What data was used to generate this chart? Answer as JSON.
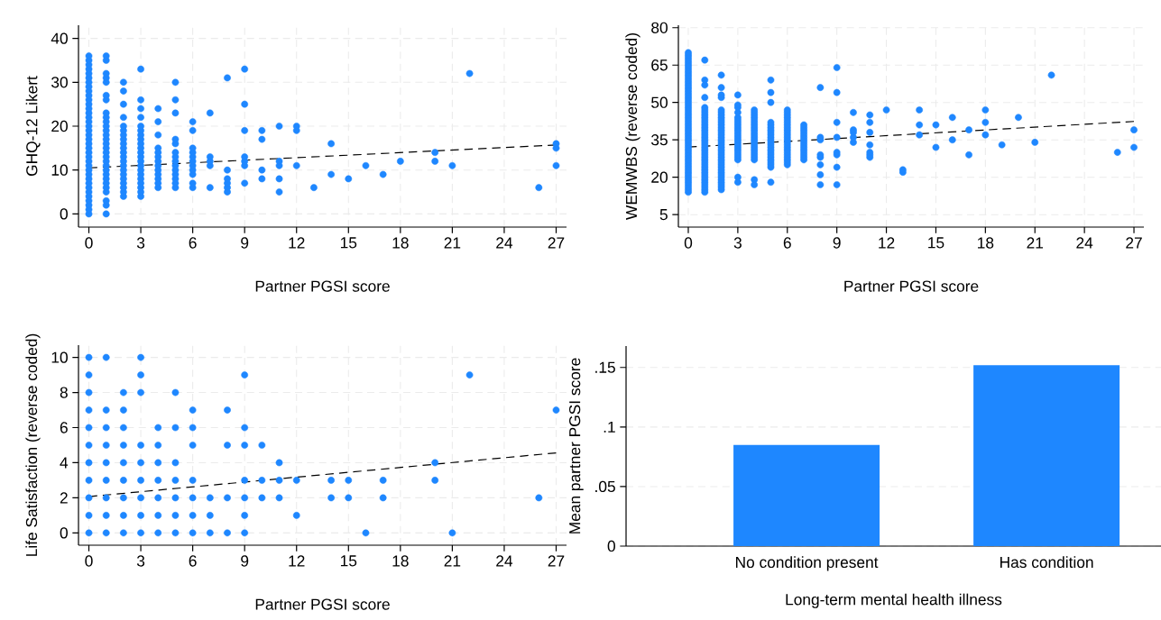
{
  "chart_data": [
    {
      "type": "scatter",
      "xlabel": "Partner PGSI score",
      "ylabel": "GHQ-12 Likert",
      "xlim": [
        -0.6,
        27.6
      ],
      "ylim": [
        -3,
        43
      ],
      "xticks": [
        0,
        3,
        6,
        9,
        12,
        15,
        18,
        21,
        24,
        27
      ],
      "yticks": [
        0,
        10,
        20,
        30,
        40
      ],
      "grid": true,
      "series": [
        {
          "type": "scatter",
          "color": "#1e87ff",
          "marker": "circle",
          "x": [
            0,
            0,
            0,
            0,
            0,
            0,
            0,
            0,
            0,
            0,
            0,
            0,
            0,
            0,
            0,
            0,
            0,
            0,
            0,
            0,
            0,
            0,
            0,
            0,
            0,
            0,
            0,
            0,
            0,
            0,
            0,
            0,
            0,
            0,
            0,
            0,
            0,
            1,
            1,
            1,
            1,
            1,
            1,
            1,
            1,
            1,
            1,
            1,
            1,
            1,
            1,
            1,
            1,
            1,
            1,
            1,
            1,
            1,
            1,
            1,
            1,
            1,
            1,
            1,
            1,
            1,
            2,
            2,
            2,
            2,
            2,
            2,
            2,
            2,
            2,
            2,
            2,
            2,
            2,
            2,
            2,
            2,
            2,
            2,
            2,
            2,
            2,
            3,
            3,
            3,
            3,
            3,
            3,
            3,
            3,
            3,
            3,
            3,
            3,
            3,
            3,
            3,
            3,
            3,
            3,
            3,
            3,
            3,
            4,
            4,
            4,
            4,
            4,
            4,
            4,
            4,
            4,
            4,
            4,
            4,
            4,
            5,
            5,
            5,
            5,
            5,
            5,
            5,
            5,
            5,
            5,
            5,
            5,
            5,
            5,
            6,
            6,
            6,
            6,
            6,
            6,
            6,
            6,
            6,
            6,
            6,
            7,
            7,
            7,
            7,
            7,
            8,
            8,
            8,
            8,
            8,
            8,
            9,
            9,
            9,
            9,
            9,
            9,
            9,
            10,
            10,
            10,
            10,
            11,
            11,
            11,
            11,
            11,
            12,
            12,
            12,
            13,
            14,
            14,
            15,
            16,
            17,
            18,
            20,
            20,
            21,
            22,
            26,
            27,
            27,
            27
          ],
          "values": [
            0,
            1,
            2,
            3,
            4,
            5,
            6,
            7,
            8,
            9,
            10,
            11,
            12,
            13,
            14,
            15,
            16,
            17,
            18,
            19,
            20,
            21,
            22,
            23,
            24,
            25,
            26,
            27,
            28,
            29,
            30,
            31,
            32,
            33,
            34,
            35,
            36,
            0,
            2,
            3,
            5,
            6,
            7,
            8,
            9,
            10,
            11,
            12,
            13,
            14,
            15,
            16,
            17,
            18,
            19,
            20,
            21,
            22,
            23,
            26,
            27,
            30,
            31,
            32,
            35,
            36,
            4,
            5,
            6,
            7,
            8,
            9,
            10,
            11,
            12,
            13,
            14,
            15,
            16,
            17,
            18,
            19,
            20,
            22,
            25,
            28,
            30,
            4,
            5,
            6,
            7,
            8,
            9,
            10,
            11,
            12,
            13,
            14,
            15,
            16,
            17,
            18,
            19,
            20,
            22,
            24,
            26,
            33,
            6,
            7,
            8,
            9,
            10,
            11,
            12,
            13,
            14,
            15,
            18,
            21,
            24,
            6,
            7,
            8,
            9,
            10,
            11,
            12,
            13,
            14,
            16,
            17,
            23,
            26,
            30,
            6,
            7,
            9,
            10,
            11,
            12,
            13,
            14,
            15,
            19,
            21,
            6,
            11,
            12,
            13,
            23,
            5,
            6,
            7,
            8,
            10,
            31,
            7,
            11,
            12,
            13,
            19,
            25,
            33,
            8,
            10,
            17,
            19,
            5,
            8,
            11,
            12,
            20,
            11,
            19,
            20,
            6,
            9,
            16,
            8,
            11,
            9,
            12,
            12,
            14,
            11,
            32,
            6,
            11,
            15,
            16
          ]
        },
        {
          "type": "line",
          "color": "#000000",
          "line_style": "dashed",
          "marker": "none",
          "x": [
            0,
            27
          ],
          "values": [
            10.5,
            15.7
          ]
        }
      ]
    },
    {
      "type": "scatter",
      "xlabel": "Partner PGSI score",
      "ylabel": "WEMWBS (reverse coded)",
      "xlim": [
        -0.6,
        27.6
      ],
      "ylim": [
        0,
        81
      ],
      "xticks": [
        0,
        3,
        6,
        9,
        12,
        15,
        18,
        21,
        24,
        27
      ],
      "yticks": [
        5,
        20,
        35,
        50,
        65,
        80
      ],
      "grid": true,
      "series": [
        {
          "type": "scatter",
          "color": "#1e87ff",
          "marker": "circle",
          "x": [
            0,
            0,
            0,
            0,
            0,
            0,
            0,
            0,
            0,
            0,
            0,
            0,
            0,
            0,
            0,
            0,
            0,
            0,
            0,
            0,
            0,
            0,
            0,
            0,
            0,
            0,
            0,
            0,
            0,
            0,
            0,
            0,
            0,
            0,
            0,
            0,
            0,
            0,
            0,
            0,
            0,
            0,
            0,
            0,
            0,
            0,
            0,
            0,
            0,
            0,
            0,
            0,
            0,
            0,
            0,
            0,
            0,
            1,
            1,
            1,
            1,
            1,
            1,
            1,
            1,
            1,
            1,
            1,
            1,
            1,
            1,
            1,
            1,
            1,
            1,
            1,
            1,
            1,
            1,
            1,
            1,
            1,
            1,
            1,
            1,
            1,
            1,
            1,
            1,
            1,
            1,
            1,
            1,
            1,
            1,
            1,
            2,
            2,
            2,
            2,
            2,
            2,
            2,
            2,
            2,
            2,
            2,
            2,
            2,
            2,
            2,
            2,
            2,
            2,
            2,
            2,
            2,
            2,
            2,
            2,
            2,
            2,
            2,
            2,
            2,
            2,
            2,
            2,
            2,
            2,
            2,
            2,
            2,
            3,
            3,
            3,
            3,
            3,
            3,
            3,
            3,
            3,
            3,
            3,
            3,
            3,
            3,
            3,
            3,
            3,
            3,
            3,
            3,
            3,
            3,
            3,
            3,
            4,
            4,
            4,
            4,
            4,
            4,
            4,
            4,
            4,
            4,
            4,
            4,
            4,
            4,
            4,
            4,
            4,
            4,
            4,
            4,
            4,
            4,
            4,
            5,
            5,
            5,
            5,
            5,
            5,
            5,
            5,
            5,
            5,
            5,
            5,
            5,
            5,
            5,
            5,
            5,
            5,
            5,
            5,
            5,
            5,
            5,
            6,
            6,
            6,
            6,
            6,
            6,
            6,
            6,
            6,
            6,
            6,
            6,
            6,
            6,
            6,
            6,
            6,
            6,
            6,
            6,
            6,
            6,
            6,
            7,
            7,
            7,
            7,
            7,
            7,
            7,
            7,
            7,
            7,
            7,
            7,
            7,
            7,
            7,
            8,
            8,
            8,
            8,
            8,
            8,
            8,
            8,
            9,
            9,
            9,
            9,
            9,
            9,
            9,
            9,
            10,
            10,
            10,
            10,
            10,
            11,
            11,
            11,
            11,
            11,
            11,
            11,
            12,
            13,
            13,
            14,
            14,
            14,
            15,
            15,
            16,
            16,
            17,
            17,
            18,
            18,
            18,
            19,
            20,
            21,
            22,
            26,
            27,
            27
          ],
          "values": [
            14,
            15,
            16,
            17,
            18,
            19,
            20,
            21,
            22,
            23,
            24,
            25,
            26,
            27,
            28,
            29,
            30,
            31,
            32,
            33,
            34,
            35,
            36,
            37,
            38,
            39,
            40,
            41,
            42,
            43,
            44,
            45,
            46,
            47,
            48,
            49,
            50,
            51,
            52,
            53,
            54,
            55,
            56,
            57,
            58,
            59,
            60,
            61,
            62,
            63,
            64,
            65,
            66,
            67,
            68,
            69,
            70,
            14,
            15,
            16,
            17,
            18,
            19,
            20,
            21,
            22,
            23,
            24,
            25,
            26,
            27,
            28,
            29,
            30,
            31,
            32,
            33,
            34,
            35,
            36,
            37,
            38,
            39,
            40,
            41,
            42,
            43,
            44,
            45,
            46,
            47,
            48,
            52,
            57,
            59,
            67,
            15,
            16,
            17,
            18,
            19,
            20,
            21,
            22,
            23,
            24,
            25,
            26,
            27,
            28,
            29,
            30,
            31,
            32,
            33,
            34,
            35,
            36,
            37,
            38,
            39,
            40,
            41,
            42,
            43,
            44,
            45,
            46,
            47,
            52,
            53,
            56,
            61,
            18,
            20,
            27,
            28,
            29,
            30,
            31,
            32,
            33,
            34,
            35,
            36,
            37,
            38,
            39,
            40,
            41,
            42,
            43,
            44,
            46,
            48,
            49,
            53,
            17,
            19,
            27,
            28,
            29,
            30,
            31,
            32,
            33,
            34,
            35,
            36,
            37,
            38,
            39,
            40,
            41,
            42,
            43,
            44,
            45,
            46,
            47,
            18,
            24,
            25,
            26,
            27,
            28,
            29,
            30,
            31,
            32,
            33,
            34,
            35,
            36,
            37,
            38,
            39,
            40,
            41,
            42,
            50,
            54,
            59,
            25,
            26,
            27,
            28,
            29,
            30,
            31,
            32,
            33,
            34,
            35,
            36,
            37,
            38,
            39,
            40,
            41,
            42,
            43,
            44,
            45,
            46,
            47,
            27,
            28,
            29,
            30,
            31,
            32,
            33,
            34,
            35,
            36,
            37,
            38,
            39,
            40,
            41,
            17,
            21,
            25,
            28,
            29,
            35,
            36,
            56,
            17,
            24,
            29,
            30,
            36,
            42,
            54,
            64,
            34,
            36,
            38,
            39,
            46,
            28,
            29,
            30,
            33,
            38,
            42,
            45,
            47,
            22,
            23,
            37,
            41,
            47,
            32,
            41,
            35,
            44,
            29,
            39,
            37,
            42,
            47,
            33,
            44,
            34,
            61,
            30,
            32,
            39
          ]
        },
        {
          "type": "line",
          "color": "#000000",
          "line_style": "dashed",
          "marker": "none",
          "x": [
            0,
            27
          ],
          "values": [
            32.1,
            42.4
          ]
        }
      ]
    },
    {
      "type": "scatter",
      "xlabel": "Partner PGSI score",
      "ylabel": "Life Satisfaction (reverse coded)",
      "xlim": [
        -0.6,
        27.6
      ],
      "ylim": [
        -0.7,
        10.7
      ],
      "xticks": [
        0,
        3,
        6,
        9,
        12,
        15,
        18,
        21,
        24,
        27
      ],
      "yticks": [
        0,
        2,
        4,
        6,
        8,
        10
      ],
      "grid": true,
      "series": [
        {
          "type": "scatter",
          "color": "#1e87ff",
          "marker": "circle",
          "x": [
            0,
            0,
            0,
            0,
            0,
            0,
            0,
            0,
            0,
            0,
            0,
            1,
            1,
            1,
            1,
            1,
            1,
            1,
            1,
            1,
            2,
            2,
            2,
            2,
            2,
            2,
            2,
            2,
            2,
            3,
            3,
            3,
            3,
            3,
            3,
            3,
            3,
            3,
            4,
            4,
            4,
            4,
            4,
            4,
            4,
            5,
            5,
            5,
            5,
            5,
            5,
            5,
            6,
            6,
            6,
            6,
            6,
            6,
            6,
            7,
            7,
            7,
            8,
            8,
            8,
            8,
            9,
            9,
            9,
            9,
            9,
            9,
            9,
            10,
            10,
            10,
            11,
            11,
            11,
            12,
            12,
            14,
            14,
            15,
            15,
            16,
            17,
            17,
            20,
            20,
            21,
            22,
            26,
            27
          ],
          "values": [
            0,
            1,
            2,
            3,
            4,
            5,
            6,
            7,
            8,
            9,
            10,
            0,
            1,
            2,
            3,
            4,
            5,
            6,
            7,
            10,
            0,
            1,
            2,
            3,
            4,
            5,
            6,
            7,
            8,
            0,
            1,
            2,
            3,
            4,
            5,
            8,
            9,
            10,
            0,
            1,
            2,
            3,
            4,
            5,
            6,
            0,
            1,
            2,
            3,
            4,
            6,
            8,
            0,
            1,
            2,
            3,
            5,
            6,
            7,
            0,
            1,
            2,
            0,
            2,
            5,
            7,
            0,
            1,
            2,
            3,
            5,
            6,
            9,
            2,
            3,
            5,
            2,
            3,
            4,
            1,
            3,
            2,
            3,
            2,
            3,
            0,
            2,
            3,
            3,
            4,
            0,
            9,
            2,
            7
          ]
        },
        {
          "type": "line",
          "color": "#000000",
          "line_style": "dashed",
          "marker": "none",
          "x": [
            0,
            27
          ],
          "values": [
            2.07,
            4.56
          ]
        }
      ]
    },
    {
      "type": "bar",
      "xlabel": "Long-term mental health illness",
      "ylabel": "Mean partner PGSI score",
      "categories": [
        "No condition present",
        "Has condition"
      ],
      "values": [
        0.085,
        0.152
      ],
      "color": "#1e87ff",
      "ylim": [
        0,
        0.168
      ],
      "yticks": [
        0,
        {
          "value": 0.05,
          "label": ".05"
        },
        {
          "value": 0.1,
          "label": ".1"
        },
        {
          "value": 0.15,
          "label": ".15"
        }
      ],
      "grid": "y"
    }
  ]
}
